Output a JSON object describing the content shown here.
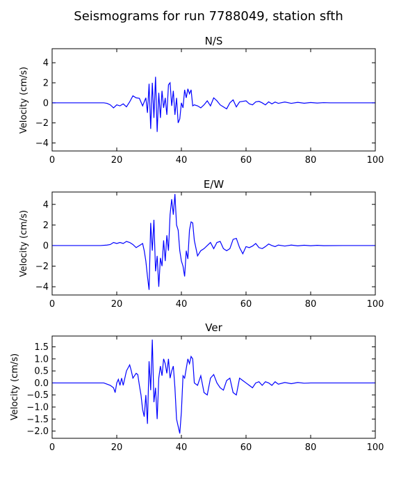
{
  "title": "Seismograms for run 7788049, station sfth",
  "chart_data": [
    {
      "type": "line",
      "title": "N/S",
      "xlabel": "",
      "ylabel": "Velocity (cm/s)",
      "xlim": [
        0,
        100
      ],
      "ylim": [
        -4.8,
        5.4
      ],
      "xticks": [
        "0",
        "20",
        "40",
        "60",
        "80",
        "100"
      ],
      "yticks": [
        "4",
        "2",
        "0",
        "−2",
        "−4"
      ],
      "ytick_values": [
        4,
        2,
        0,
        -2,
        -4
      ],
      "xtick_values": [
        0,
        20,
        40,
        60,
        80,
        100
      ],
      "grid": false,
      "color": "#0000ff",
      "x": [
        0,
        16,
        17,
        18,
        19,
        20,
        21,
        22,
        23,
        24,
        25,
        26,
        27,
        28,
        29,
        29.5,
        30,
        30.5,
        31,
        31.5,
        32,
        32.5,
        33,
        33.5,
        34,
        34.5,
        35,
        35.5,
        36,
        36.5,
        37,
        37.5,
        38,
        38.5,
        39,
        39.5,
        40,
        40.5,
        41,
        41.5,
        42,
        42.5,
        43,
        43.5,
        44,
        45,
        46,
        47,
        48,
        49,
        50,
        51,
        52,
        53,
        54,
        55,
        56,
        57,
        58,
        59,
        60,
        61,
        62,
        63,
        64,
        65,
        66,
        67,
        68,
        69,
        70,
        72,
        74,
        76,
        78,
        80,
        82,
        84,
        86,
        90,
        100
      ],
      "y": [
        0,
        0,
        -0.05,
        -0.2,
        -0.5,
        -0.2,
        -0.3,
        -0.1,
        -0.4,
        0.1,
        0.7,
        0.5,
        0.45,
        -0.3,
        0.5,
        -1.0,
        1.9,
        -2.6,
        2.0,
        -1.5,
        2.6,
        -2.9,
        1.0,
        -1.5,
        1.2,
        -0.5,
        0.5,
        -1.2,
        1.8,
        2.0,
        -0.3,
        1.2,
        -1.2,
        0.5,
        -2.0,
        -1.6,
        0.0,
        -0.5,
        1.3,
        0.5,
        1.4,
        0.9,
        1.3,
        -0.3,
        -0.2,
        -0.3,
        -0.5,
        -0.2,
        0.2,
        -0.3,
        0.5,
        0.2,
        -0.2,
        -0.4,
        -0.6,
        0.0,
        0.3,
        -0.4,
        0.1,
        0.15,
        0.2,
        -0.1,
        -0.2,
        0.1,
        0.15,
        0.0,
        -0.2,
        0.1,
        -0.1,
        0.08,
        -0.05,
        0.08,
        -0.05,
        0.05,
        -0.04,
        0.03,
        -0.02,
        0.02,
        0,
        0,
        0
      ]
    },
    {
      "type": "line",
      "title": "E/W",
      "xlabel": "",
      "ylabel": "Velocity (cm/s)",
      "xlim": [
        0,
        100
      ],
      "ylim": [
        -4.8,
        5.2
      ],
      "xticks": [
        "0",
        "20",
        "40",
        "60",
        "80",
        "100"
      ],
      "yticks": [
        "4",
        "2",
        "0",
        "−2",
        "−4"
      ],
      "ytick_values": [
        4,
        2,
        0,
        -2,
        -4
      ],
      "xtick_values": [
        0,
        20,
        40,
        60,
        80,
        100
      ],
      "grid": false,
      "color": "#0000ff",
      "x": [
        0,
        15,
        17,
        18,
        19,
        20,
        21,
        22,
        23,
        24,
        25,
        26,
        27,
        28,
        28.5,
        29,
        29.5,
        30,
        30.5,
        31,
        31.5,
        32,
        32.5,
        33,
        33.5,
        34,
        34.5,
        35,
        35.5,
        36,
        36.5,
        37,
        37.5,
        38,
        38.5,
        39,
        39.5,
        40,
        40.5,
        41,
        41.5,
        42,
        42.5,
        43,
        43.5,
        44,
        45,
        46,
        47,
        48,
        49,
        50,
        51,
        52,
        53,
        54,
        55,
        56,
        57,
        58,
        59,
        60,
        61,
        62,
        63,
        64,
        65,
        66,
        67,
        68,
        69,
        70,
        72,
        74,
        76,
        78,
        80,
        82,
        84,
        90,
        100
      ],
      "y": [
        0,
        0,
        0.05,
        0.1,
        0.3,
        0.2,
        0.3,
        0.2,
        0.4,
        0.3,
        0.1,
        -0.2,
        0.0,
        0.2,
        -0.5,
        -1.5,
        -3.0,
        -4.3,
        2.2,
        -0.5,
        2.5,
        -2.5,
        -1.0,
        -4.0,
        -1.2,
        -2.0,
        0.5,
        -1.5,
        1.0,
        -0.5,
        3.0,
        4.5,
        3.0,
        5.0,
        2.0,
        1.5,
        -0.5,
        -1.5,
        -2.0,
        -3.0,
        -0.5,
        -1.3,
        1.5,
        2.3,
        2.2,
        0.5,
        -1.0,
        -0.5,
        -0.3,
        0.0,
        0.3,
        -0.3,
        0.3,
        0.4,
        -0.3,
        -0.5,
        -0.3,
        0.6,
        0.7,
        -0.2,
        -0.8,
        -0.1,
        -0.2,
        -0.05,
        0.2,
        -0.2,
        -0.3,
        -0.1,
        0.15,
        0.0,
        -0.1,
        0.05,
        -0.05,
        0.05,
        -0.03,
        0.03,
        -0.02,
        0.02,
        -0.01,
        0,
        0
      ]
    },
    {
      "type": "line",
      "title": "Ver",
      "xlabel": "",
      "ylabel": "Velocity (cm/s)",
      "xlim": [
        0,
        100
      ],
      "ylim": [
        -2.3,
        1.95
      ],
      "xticks": [
        "0",
        "20",
        "40",
        "60",
        "80",
        "100"
      ],
      "yticks": [
        "1.5",
        "1.0",
        "0.5",
        "0.0",
        "−0.5",
        "−1.0",
        "−1.5",
        "−2.0"
      ],
      "ytick_values": [
        1.5,
        1.0,
        0.5,
        0.0,
        -0.5,
        -1.0,
        -1.5,
        -2.0
      ],
      "xtick_values": [
        0,
        20,
        40,
        60,
        80,
        100
      ],
      "grid": false,
      "color": "#0000ff",
      "x": [
        0,
        16,
        17,
        18,
        19,
        19.5,
        20,
        20.5,
        21,
        21.5,
        22,
        23,
        24,
        24.5,
        25,
        25.5,
        26,
        26.5,
        27,
        27.5,
        28,
        28.5,
        29,
        29.5,
        30,
        30.5,
        31,
        31.5,
        32,
        32.5,
        33,
        33.5,
        34,
        34.5,
        35,
        35.5,
        36,
        36.5,
        37,
        37.5,
        38,
        38.5,
        39,
        39.5,
        40,
        40.5,
        41,
        41.5,
        42,
        42.5,
        43,
        43.5,
        44,
        45,
        46,
        47,
        48,
        49,
        50,
        51,
        52,
        53,
        54,
        55,
        56,
        57,
        58,
        59,
        60,
        61,
        62,
        63,
        64,
        65,
        66,
        67,
        68,
        69,
        70,
        72,
        74,
        76,
        78,
        80,
        90,
        100
      ],
      "y": [
        0,
        0,
        -0.05,
        -0.1,
        -0.2,
        -0.4,
        0.0,
        0.15,
        -0.1,
        0.2,
        -0.1,
        0.5,
        0.75,
        0.5,
        0.2,
        0.3,
        0.4,
        0.35,
        -0.1,
        -0.5,
        -1.1,
        -1.4,
        -0.5,
        -1.7,
        0.9,
        -0.3,
        1.8,
        -0.8,
        -0.2,
        -1.5,
        0.2,
        0.7,
        0.3,
        1.0,
        0.8,
        0.4,
        1.0,
        0.2,
        0.5,
        0.7,
        -0.2,
        -1.5,
        -1.8,
        -2.1,
        -1.2,
        0.3,
        0.2,
        0.6,
        1.0,
        0.8,
        1.1,
        1.0,
        0.0,
        -0.1,
        0.3,
        -0.4,
        -0.5,
        0.2,
        0.35,
        0.0,
        -0.2,
        -0.3,
        0.1,
        0.2,
        -0.4,
        -0.5,
        0.2,
        0.1,
        0.0,
        -0.1,
        -0.2,
        0.0,
        0.05,
        -0.1,
        0.05,
        0.0,
        -0.1,
        0.05,
        -0.05,
        0.02,
        -0.03,
        0.02,
        -0.01,
        0,
        0,
        0
      ]
    }
  ]
}
